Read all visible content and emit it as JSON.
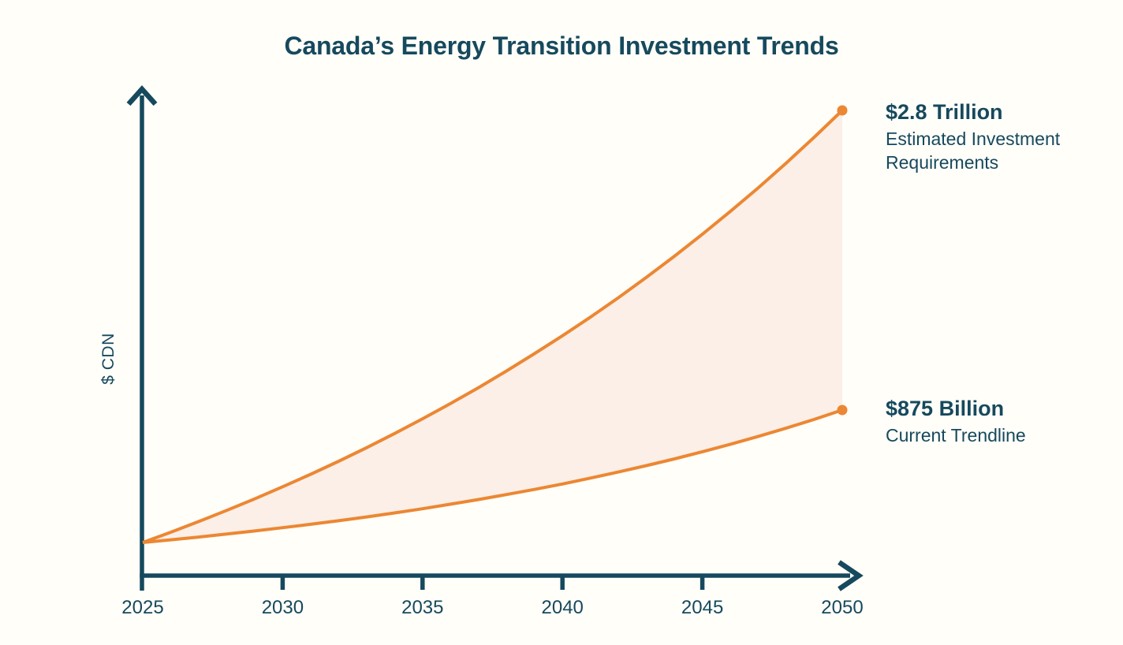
{
  "page": {
    "background": "#FFFEF9"
  },
  "title": {
    "text": "Canada’s Energy Transition Investment Trends"
  },
  "axes": {
    "y_label": "$ CDN",
    "x_tick_labels": [
      "2025",
      "2030",
      "2035",
      "2040",
      "2045",
      "2050"
    ]
  },
  "annotations": {
    "upper": {
      "value": "$2.8 Trillion",
      "desc": "Estimated Investment Requirements"
    },
    "lower": {
      "value": "$875 Billion",
      "desc": "Current Trendline"
    }
  },
  "colors": {
    "ink": "#16495D",
    "line": "#EC8733",
    "band_fill": "#FBEFE7"
  },
  "chart_data": {
    "type": "area",
    "title": "Canada’s Energy Transition Investment Trends",
    "xlabel": "",
    "ylabel": "$ CDN",
    "units": "CAD billions (only 2050 endpoints labeled on chart; intermediate values estimated from curve geometry)",
    "grid": false,
    "legend_position": "end-of-line labels at right",
    "xlim": [
      2025,
      2050
    ],
    "ylim": [
      24,
      2800
    ],
    "x_ticks": [
      2025,
      2030,
      2035,
      2040,
      2045,
      2050
    ],
    "x": [
      2025,
      2026,
      2027,
      2028,
      2029,
      2030,
      2031,
      2032,
      2033,
      2034,
      2035,
      2036,
      2037,
      2038,
      2039,
      2040,
      2041,
      2042,
      2043,
      2044,
      2045,
      2046,
      2047,
      2048,
      2049,
      2050
    ],
    "series": [
      {
        "name": "Estimated Investment Requirements",
        "end_label": "$2.8 Trillion",
        "end_value_billions": 2800,
        "values": [
          24,
          90,
          159,
          230,
          304,
          382,
          462,
          546,
          633,
          724,
          819,
          917,
          1019,
          1126,
          1237,
          1352,
          1472,
          1597,
          1727,
          1863,
          2004,
          2151,
          2303,
          2462,
          2628,
          2800
        ]
      },
      {
        "name": "Current Trendline",
        "end_label": "$875 Billion",
        "end_value_billions": 875,
        "values": [
          24,
          41,
          59,
          78,
          98,
          119,
          141,
          164,
          188,
          214,
          241,
          270,
          300,
          332,
          365,
          400,
          438,
          477,
          518,
          561,
          607,
          655,
          706,
          759,
          815,
          875
        ]
      }
    ]
  }
}
